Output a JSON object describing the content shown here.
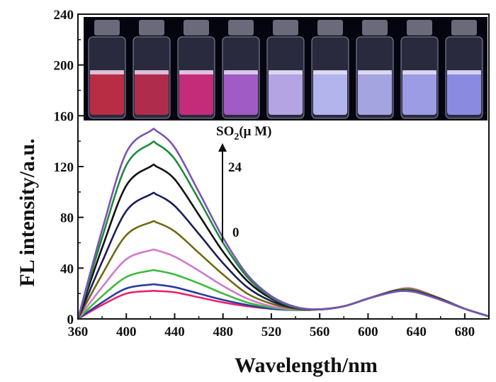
{
  "chart_data": {
    "type": "line",
    "xlabel": "Wavelength/nm",
    "ylabel": "FL intensity/a.u.",
    "xlim": [
      360,
      700
    ],
    "ylim": [
      0,
      240
    ],
    "xticks": [
      360,
      400,
      440,
      480,
      520,
      560,
      600,
      640,
      680
    ],
    "yticks": [
      0,
      40,
      80,
      120,
      160,
      200,
      240
    ],
    "grid": false,
    "x": [
      360,
      380,
      400,
      420,
      425,
      440,
      460,
      480,
      500,
      520,
      540,
      560,
      580,
      600,
      620,
      630,
      640,
      660,
      680,
      700
    ],
    "series": [
      {
        "color": "#e8246e",
        "values": [
          0,
          11,
          20,
          22,
          22,
          21,
          17,
          13,
          10,
          8,
          7,
          7.5,
          10,
          16,
          22,
          24,
          23,
          16,
          8,
          2
        ]
      },
      {
        "color": "#2a3c9c",
        "values": [
          0,
          13,
          24,
          27,
          27,
          25,
          20,
          15,
          11,
          8,
          7,
          7.5,
          10,
          16,
          22,
          23.5,
          22.5,
          16,
          8,
          2
        ]
      },
      {
        "color": "#3cba3c",
        "values": [
          0,
          18,
          33,
          38,
          38,
          35,
          28,
          20,
          13,
          9,
          7,
          7.5,
          10,
          16,
          22,
          23.5,
          22.5,
          16,
          8,
          2
        ]
      },
      {
        "color": "#d478cc",
        "values": [
          0,
          25,
          47,
          54,
          54,
          49,
          38,
          26,
          16,
          10,
          7.5,
          7.5,
          10,
          16,
          22,
          23,
          22,
          16,
          8,
          2
        ]
      },
      {
        "color": "#6e6a10",
        "values": [
          0,
          35,
          66,
          76,
          76,
          69,
          52,
          35,
          20,
          12,
          8,
          7.5,
          10,
          16,
          22,
          23,
          22,
          16,
          8,
          2
        ]
      },
      {
        "color": "#1c1c5c",
        "values": [
          0,
          45,
          85,
          98,
          98,
          89,
          67,
          44,
          25,
          14,
          8.5,
          7.5,
          10,
          16,
          21.5,
          22.5,
          21.5,
          15.5,
          8,
          2
        ]
      },
      {
        "color": "#111111",
        "values": [
          0,
          56,
          105,
          120,
          120,
          110,
          82,
          53,
          30,
          16,
          9,
          7.5,
          10,
          16,
          21,
          22,
          21,
          15,
          8,
          2
        ]
      },
      {
        "color": "#1e8a3c",
        "values": [
          0,
          64,
          121,
          138,
          138,
          126,
          94,
          60,
          33,
          17,
          9,
          7.5,
          10,
          16,
          21,
          22,
          21,
          15,
          8,
          2
        ]
      },
      {
        "color": "#7a54b4",
        "values": [
          0,
          70,
          131,
          148,
          148,
          135,
          100,
          64,
          35,
          18,
          9.5,
          7.5,
          10,
          16,
          21,
          22,
          21,
          15,
          8,
          2
        ]
      }
    ],
    "annotations": {
      "so2_label": "SO",
      "so2_sub": "2",
      "so2_unit": "(μ M)",
      "top_value": "24",
      "bottom_value": "0"
    },
    "inset": {
      "vials": [
        {
          "liquid": "#b82d44"
        },
        {
          "liquid": "#b02c4c"
        },
        {
          "liquid": "#c42c7a"
        },
        {
          "liquid": "#a05cc4"
        },
        {
          "liquid": "#b4a4e4"
        },
        {
          "liquid": "#b4b4ec"
        },
        {
          "liquid": "#a4a4e0"
        },
        {
          "liquid": "#9c9ce4"
        },
        {
          "liquid": "#8a8ae0"
        }
      ]
    }
  }
}
